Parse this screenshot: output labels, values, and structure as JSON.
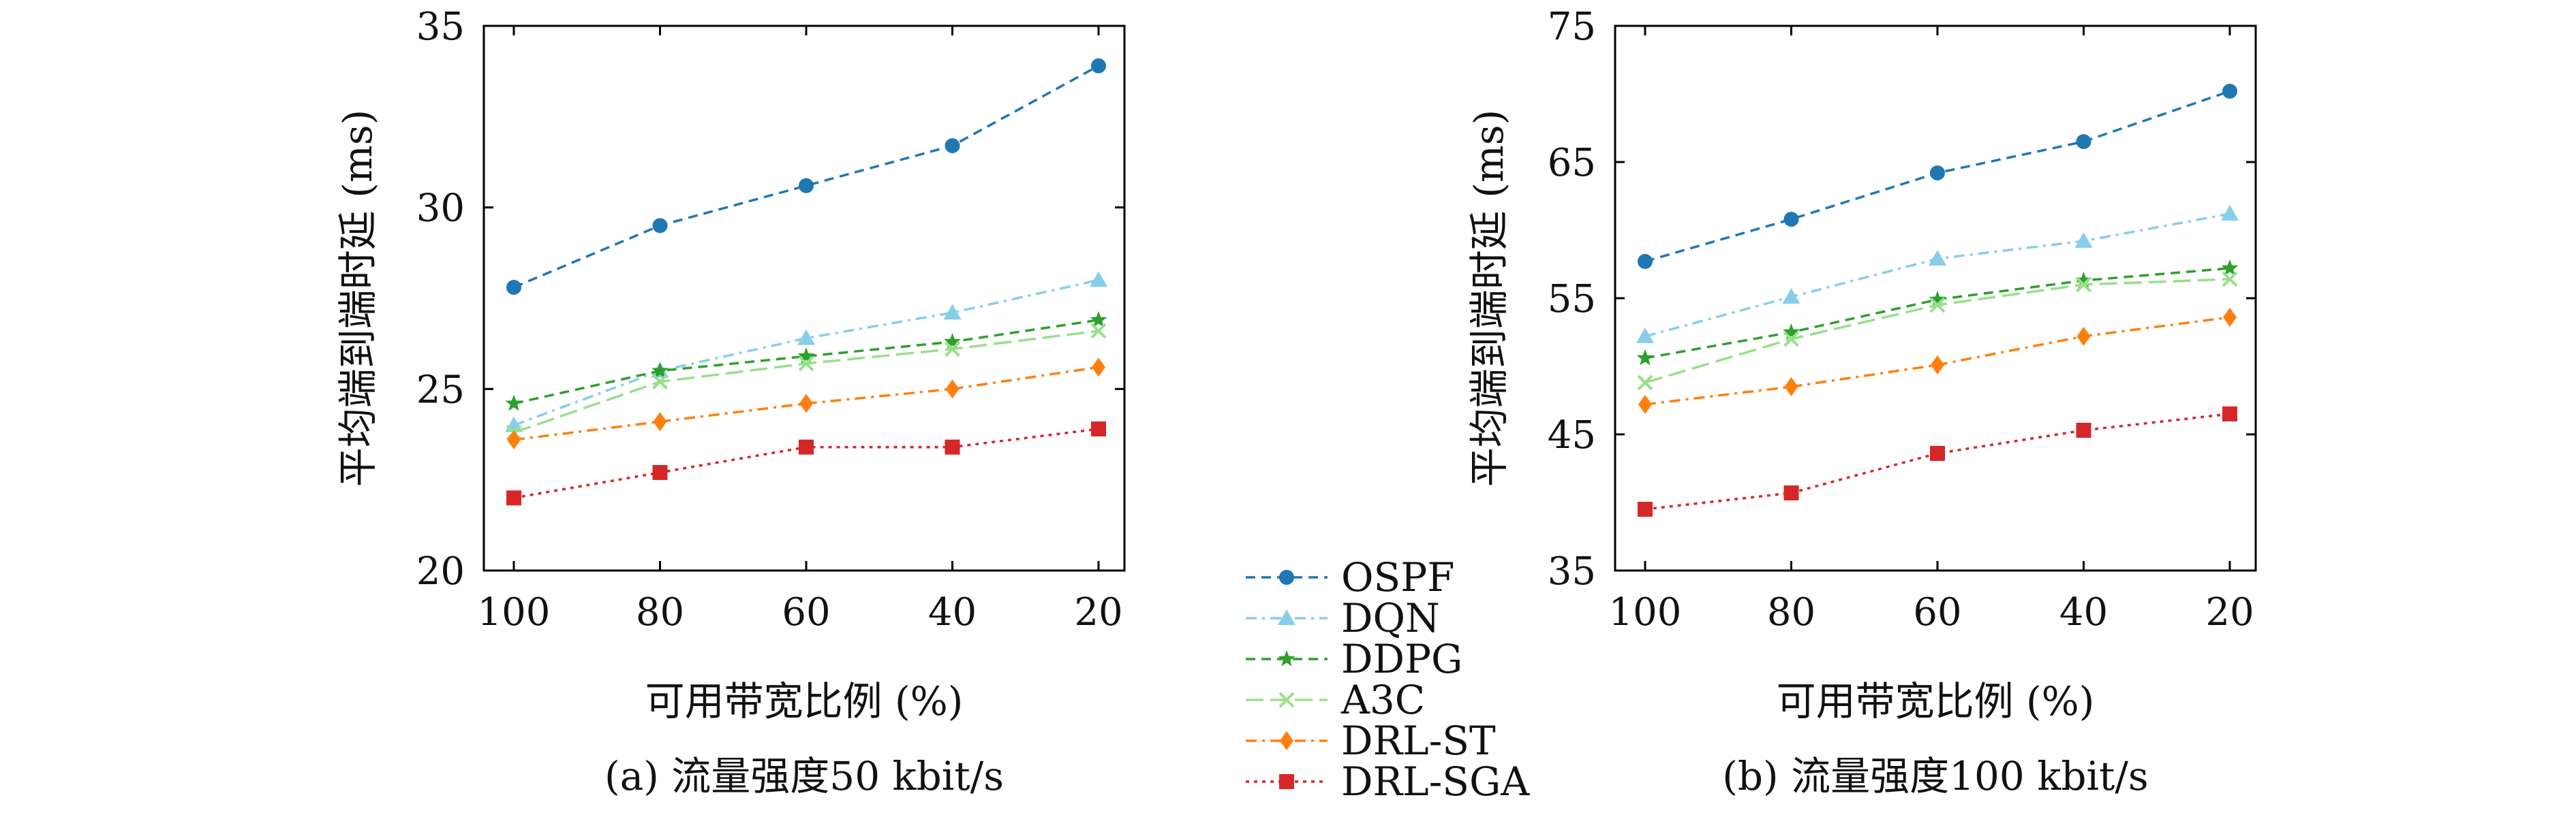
{
  "legend": {
    "entries": [
      {
        "name": "OSPF",
        "color": "#1f77b4",
        "marker": "circle",
        "dash": "dashed"
      },
      {
        "name": "DQN",
        "color": "#87ceeb",
        "marker": "triangle",
        "dash": "dashdot"
      },
      {
        "name": "DDPG",
        "color": "#2ca02c",
        "marker": "star",
        "dash": "dashed"
      },
      {
        "name": "A3C",
        "color": "#98df8a",
        "marker": "x",
        "dash": "longdash"
      },
      {
        "name": "DRL-ST",
        "color": "#ff7f0e",
        "marker": "diamond",
        "dash": "dashdot"
      },
      {
        "name": "DRL-SGA",
        "color": "#d62728",
        "marker": "square",
        "dash": "dotted"
      }
    ]
  },
  "chart_data": [
    {
      "type": "line",
      "caption": "(a) 流量强度50 kbit/s",
      "xlabel": "可用带宽比例 (%)",
      "ylabel": "平均端到端时延 (ms)",
      "categories": [
        "100",
        "80",
        "60",
        "40",
        "20"
      ],
      "ylim": [
        20,
        35
      ],
      "yticks": [
        "20",
        "25",
        "30",
        "35"
      ],
      "grid": false,
      "series": [
        {
          "name": "OSPF",
          "values": [
            27.8,
            29.5,
            30.6,
            31.7,
            33.9
          ]
        },
        {
          "name": "DQN",
          "values": [
            24.0,
            25.5,
            26.4,
            27.1,
            28.0
          ]
        },
        {
          "name": "DDPG",
          "values": [
            24.6,
            25.5,
            25.9,
            26.3,
            26.9
          ]
        },
        {
          "name": "A3C",
          "values": [
            23.8,
            25.2,
            25.7,
            26.1,
            26.6
          ]
        },
        {
          "name": "DRL-ST",
          "values": [
            23.6,
            24.1,
            24.6,
            25.0,
            25.6
          ]
        },
        {
          "name": "DRL-SGA",
          "values": [
            22.0,
            22.7,
            23.4,
            23.4,
            23.9
          ]
        }
      ]
    },
    {
      "type": "line",
      "caption": "(b) 流量强度100 kbit/s",
      "xlabel": "可用带宽比例 (%)",
      "ylabel": "平均端到端时延 (ms)",
      "categories": [
        "100",
        "80",
        "60",
        "40",
        "20"
      ],
      "ylim": [
        35,
        75
      ],
      "yticks": [
        "35",
        "45",
        "55",
        "65",
        "75"
      ],
      "grid": false,
      "series": [
        {
          "name": "OSPF",
          "values": [
            57.7,
            60.8,
            64.2,
            66.5,
            70.2
          ]
        },
        {
          "name": "DQN",
          "values": [
            52.2,
            55.1,
            57.9,
            59.2,
            61.2
          ]
        },
        {
          "name": "DDPG",
          "values": [
            50.6,
            52.5,
            54.9,
            56.3,
            57.2
          ]
        },
        {
          "name": "A3C",
          "values": [
            48.8,
            52.0,
            54.5,
            56.0,
            56.4
          ]
        },
        {
          "name": "DRL-ST",
          "values": [
            47.2,
            48.5,
            50.1,
            52.2,
            53.6
          ]
        },
        {
          "name": "DRL-SGA",
          "values": [
            39.5,
            40.7,
            43.6,
            45.3,
            46.5
          ]
        }
      ]
    }
  ]
}
